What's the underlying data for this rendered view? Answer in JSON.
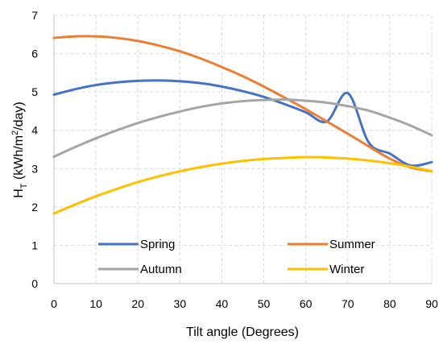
{
  "chart_data": {
    "type": "line",
    "xlabel": "Tilt angle (Degrees)",
    "ylabel": {
      "main": "H",
      "sub": "T",
      "unit_pre": " (kWh/m",
      "sup": "2",
      "unit_post": "/day)"
    },
    "xlim": [
      0,
      90
    ],
    "ylim": [
      0,
      7
    ],
    "xticks": [
      "0",
      "10",
      "20",
      "30",
      "40",
      "50",
      "60",
      "70",
      "80",
      "90"
    ],
    "yticks": [
      "0",
      "1",
      "2",
      "3",
      "4",
      "5",
      "6",
      "7"
    ],
    "grid": "dashed",
    "legend_position": "bottom, inside",
    "x": [
      0,
      5,
      10,
      15,
      20,
      25,
      30,
      35,
      40,
      45,
      50,
      55,
      60,
      65,
      70,
      75,
      80,
      85,
      90
    ],
    "series": [
      {
        "name": "Spring",
        "color": "#4472C4",
        "values": [
          4.93,
          5.07,
          5.18,
          5.25,
          5.29,
          5.3,
          5.28,
          5.23,
          5.14,
          5.02,
          4.87,
          4.68,
          4.47,
          4.23,
          4.97,
          3.68,
          3.39,
          3.08,
          3.17
        ]
      },
      {
        "name": "Summer",
        "color": "#ED7D31",
        "values": [
          6.41,
          6.45,
          6.45,
          6.41,
          6.33,
          6.21,
          6.06,
          5.87,
          5.65,
          5.41,
          5.14,
          4.85,
          4.55,
          4.23,
          3.91,
          3.58,
          3.26,
          3.03,
          2.93
        ]
      },
      {
        "name": "Autumn",
        "color": "#A5A5A5",
        "values": [
          3.31,
          3.56,
          3.79,
          4.0,
          4.19,
          4.35,
          4.49,
          4.61,
          4.7,
          4.76,
          4.79,
          4.8,
          4.77,
          4.72,
          4.63,
          4.51,
          4.33,
          4.12,
          3.87
        ]
      },
      {
        "name": "Winter",
        "color": "#FFC000",
        "values": [
          1.83,
          2.06,
          2.28,
          2.47,
          2.65,
          2.8,
          2.93,
          3.04,
          3.13,
          3.2,
          3.25,
          3.28,
          3.3,
          3.29,
          3.26,
          3.21,
          3.14,
          3.05,
          2.93
        ]
      }
    ]
  }
}
